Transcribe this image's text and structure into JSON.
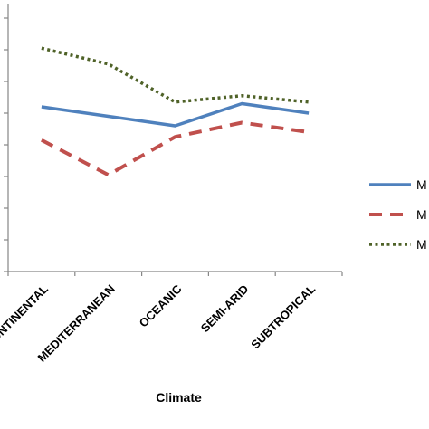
{
  "chart_data": {
    "type": "line",
    "title": "",
    "xlabel": "Climate",
    "ylabel": "",
    "categories": [
      "CONTINENTAL",
      "MEDITERRANEAN",
      "OCEANIC",
      "SEMI-ARID",
      "SUBTROPICAL"
    ],
    "ylim": [
      0,
      8
    ],
    "y_ticks": [
      0,
      1,
      2,
      3,
      4,
      5,
      6,
      7,
      8
    ],
    "y_tick_labels_visible": false,
    "grid": false,
    "legend_position": "right",
    "series": [
      {
        "name": "M",
        "values": [
          5.2,
          4.9,
          4.6,
          5.3,
          5.0
        ],
        "color": "#4f81bd",
        "style": "solid"
      },
      {
        "name": "M",
        "values": [
          4.15,
          3.05,
          4.25,
          4.7,
          4.4
        ],
        "color": "#c0504d",
        "style": "dashed"
      },
      {
        "name": "M",
        "values": [
          7.05,
          6.55,
          5.35,
          5.55,
          5.35
        ],
        "color": "#4f6228",
        "style": "dotted"
      }
    ]
  }
}
